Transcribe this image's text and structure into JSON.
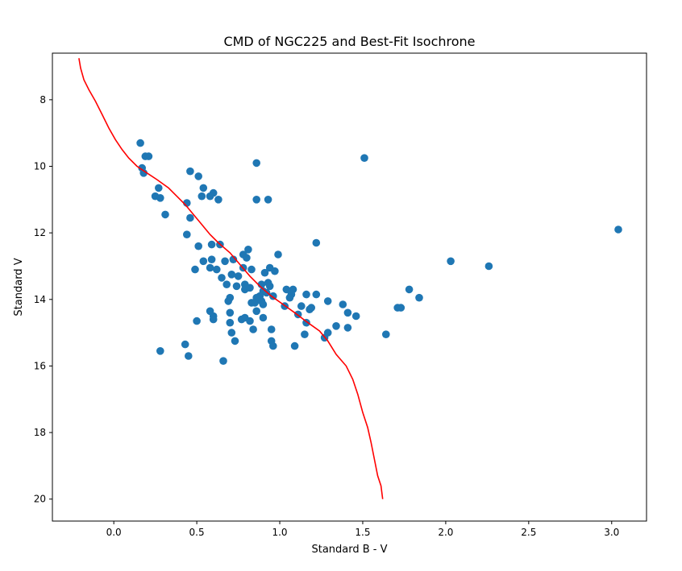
{
  "chart_data": {
    "type": "scatter",
    "title": "CMD of NGC225 and Best-Fit Isochrone",
    "xlabel": "Standard B - V",
    "ylabel": "Standard V",
    "xlim": [
      -0.37,
      3.21
    ],
    "ylim": [
      20.66,
      6.6
    ],
    "y_inverted": true,
    "grid": false,
    "x_ticks": [
      0.0,
      0.5,
      1.0,
      1.5,
      2.0,
      2.5,
      3.0
    ],
    "x_tick_labels": [
      "0.0",
      "0.5",
      "1.0",
      "1.5",
      "2.0",
      "2.5",
      "3.0"
    ],
    "y_ticks": [
      8,
      10,
      12,
      14,
      16,
      18,
      20
    ],
    "y_tick_labels": [
      "8",
      "10",
      "12",
      "14",
      "16",
      "18",
      "20"
    ],
    "colors": {
      "points": "#1f77b4",
      "isochrone": "#ff0000"
    },
    "series": [
      {
        "kind": "scatter",
        "points": [
          [
            0.16,
            9.3
          ],
          [
            0.19,
            9.7
          ],
          [
            0.21,
            9.7
          ],
          [
            0.17,
            10.05
          ],
          [
            0.18,
            10.2
          ],
          [
            0.27,
            10.65
          ],
          [
            0.25,
            10.9
          ],
          [
            0.28,
            10.95
          ],
          [
            0.31,
            11.45
          ],
          [
            0.46,
            10.15
          ],
          [
            0.51,
            10.3
          ],
          [
            0.54,
            10.65
          ],
          [
            0.6,
            10.8
          ],
          [
            0.58,
            10.9
          ],
          [
            0.53,
            10.9
          ],
          [
            0.63,
            11.0
          ],
          [
            0.44,
            11.1
          ],
          [
            0.46,
            11.55
          ],
          [
            0.44,
            12.05
          ],
          [
            0.86,
            9.9
          ],
          [
            0.86,
            11.0
          ],
          [
            0.93,
            11.0
          ],
          [
            1.51,
            9.75
          ],
          [
            0.51,
            12.4
          ],
          [
            0.59,
            12.35
          ],
          [
            0.64,
            12.35
          ],
          [
            0.81,
            12.5
          ],
          [
            0.78,
            12.65
          ],
          [
            0.8,
            12.75
          ],
          [
            0.72,
            12.8
          ],
          [
            0.67,
            12.85
          ],
          [
            0.54,
            12.85
          ],
          [
            0.59,
            12.8
          ],
          [
            0.99,
            12.65
          ],
          [
            1.22,
            12.3
          ],
          [
            0.49,
            13.1
          ],
          [
            0.58,
            13.05
          ],
          [
            0.62,
            13.1
          ],
          [
            0.71,
            13.25
          ],
          [
            0.75,
            13.3
          ],
          [
            0.78,
            13.05
          ],
          [
            0.83,
            13.1
          ],
          [
            0.91,
            13.2
          ],
          [
            0.94,
            13.05
          ],
          [
            0.97,
            13.15
          ],
          [
            0.65,
            13.35
          ],
          [
            0.68,
            13.55
          ],
          [
            0.74,
            13.6
          ],
          [
            0.79,
            13.55
          ],
          [
            0.8,
            13.65
          ],
          [
            0.79,
            13.7
          ],
          [
            0.82,
            13.65
          ],
          [
            0.89,
            13.55
          ],
          [
            0.93,
            13.5
          ],
          [
            0.94,
            13.6
          ],
          [
            0.9,
            13.75
          ],
          [
            0.92,
            13.8
          ],
          [
            0.96,
            13.9
          ],
          [
            0.88,
            13.9
          ],
          [
            0.86,
            13.95
          ],
          [
            1.04,
            13.7
          ],
          [
            1.08,
            13.7
          ],
          [
            1.07,
            13.85
          ],
          [
            1.06,
            13.95
          ],
          [
            1.16,
            13.85
          ],
          [
            1.22,
            13.85
          ],
          [
            0.7,
            13.95
          ],
          [
            0.69,
            14.05
          ],
          [
            0.83,
            14.1
          ],
          [
            0.85,
            14.1
          ],
          [
            0.89,
            14.05
          ],
          [
            0.9,
            14.15
          ],
          [
            1.03,
            14.2
          ],
          [
            1.13,
            14.2
          ],
          [
            1.18,
            14.3
          ],
          [
            1.19,
            14.25
          ],
          [
            1.29,
            14.05
          ],
          [
            1.38,
            14.15
          ],
          [
            0.58,
            14.35
          ],
          [
            0.7,
            14.4
          ],
          [
            0.6,
            14.5
          ],
          [
            0.6,
            14.6
          ],
          [
            0.5,
            14.65
          ],
          [
            0.77,
            14.6
          ],
          [
            0.79,
            14.55
          ],
          [
            0.82,
            14.65
          ],
          [
            0.86,
            14.35
          ],
          [
            0.9,
            14.55
          ],
          [
            1.11,
            14.45
          ],
          [
            1.16,
            14.7
          ],
          [
            1.41,
            14.4
          ],
          [
            1.46,
            14.5
          ],
          [
            1.71,
            14.25
          ],
          [
            1.73,
            14.25
          ],
          [
            1.78,
            13.7
          ],
          [
            1.84,
            13.95
          ],
          [
            0.7,
            14.7
          ],
          [
            0.84,
            14.9
          ],
          [
            0.71,
            15.0
          ],
          [
            0.73,
            15.25
          ],
          [
            0.95,
            14.9
          ],
          [
            0.95,
            15.25
          ],
          [
            0.96,
            15.4
          ],
          [
            1.15,
            15.05
          ],
          [
            1.09,
            15.4
          ],
          [
            1.27,
            15.15
          ],
          [
            1.29,
            15.0
          ],
          [
            1.34,
            14.8
          ],
          [
            1.41,
            14.85
          ],
          [
            1.64,
            15.05
          ],
          [
            0.28,
            15.55
          ],
          [
            0.43,
            15.35
          ],
          [
            0.45,
            15.7
          ],
          [
            0.66,
            15.85
          ],
          [
            2.03,
            12.85
          ],
          [
            2.26,
            13.0
          ],
          [
            3.04,
            11.9
          ]
        ]
      },
      {
        "kind": "line",
        "points": [
          [
            -0.21,
            6.75
          ],
          [
            -0.2,
            7.05
          ],
          [
            -0.18,
            7.4
          ],
          [
            -0.15,
            7.7
          ],
          [
            -0.11,
            8.05
          ],
          [
            -0.07,
            8.45
          ],
          [
            -0.03,
            8.85
          ],
          [
            0.01,
            9.2
          ],
          [
            0.05,
            9.5
          ],
          [
            0.09,
            9.75
          ],
          [
            0.14,
            10.0
          ],
          [
            0.2,
            10.2
          ],
          [
            0.26,
            10.4
          ],
          [
            0.33,
            10.65
          ],
          [
            0.38,
            10.9
          ],
          [
            0.43,
            11.15
          ],
          [
            0.48,
            11.45
          ],
          [
            0.53,
            11.75
          ],
          [
            0.58,
            12.05
          ],
          [
            0.63,
            12.3
          ],
          [
            0.7,
            12.6
          ],
          [
            0.76,
            12.95
          ],
          [
            0.82,
            13.3
          ],
          [
            0.88,
            13.6
          ],
          [
            0.95,
            13.9
          ],
          [
            1.02,
            14.15
          ],
          [
            1.09,
            14.4
          ],
          [
            1.17,
            14.7
          ],
          [
            1.24,
            14.95
          ],
          [
            1.29,
            15.25
          ],
          [
            1.34,
            15.65
          ],
          [
            1.4,
            16.0
          ],
          [
            1.44,
            16.4
          ],
          [
            1.47,
            16.85
          ],
          [
            1.5,
            17.4
          ],
          [
            1.53,
            17.85
          ],
          [
            1.55,
            18.3
          ],
          [
            1.57,
            18.8
          ],
          [
            1.59,
            19.3
          ],
          [
            1.61,
            19.6
          ],
          [
            1.62,
            20.0
          ]
        ]
      }
    ]
  }
}
